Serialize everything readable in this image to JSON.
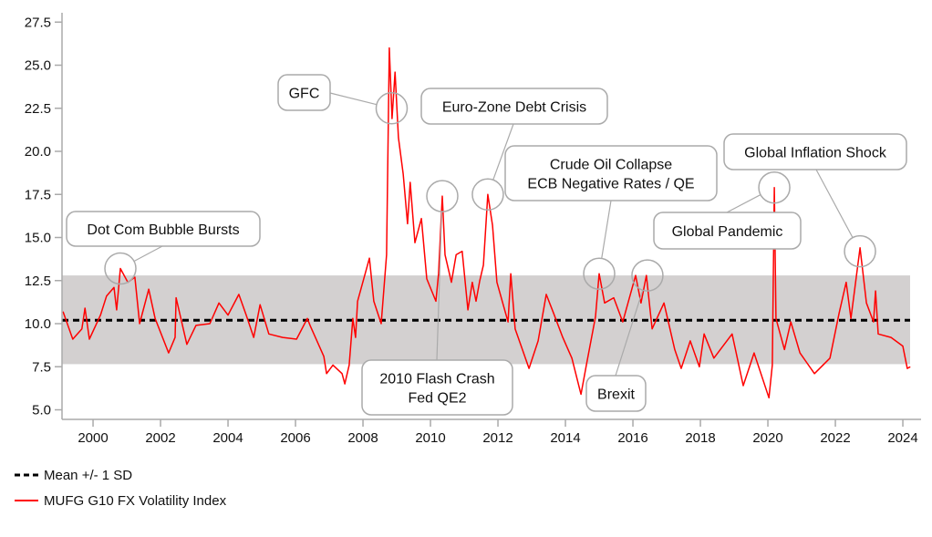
{
  "chart_data": {
    "type": "line",
    "title": "",
    "xlabel": "",
    "ylabel": "",
    "xlim": [
      1999.08,
      2024.6
    ],
    "ylim": [
      5.0,
      27.5
    ],
    "x_ticks": [
      "2000",
      "2002",
      "2004",
      "2006",
      "2008",
      "2010",
      "2012",
      "2014",
      "2016",
      "2018",
      "2020",
      "2022",
      "2024"
    ],
    "y_ticks": [
      "5.0",
      "7.5",
      "10.0",
      "12.5",
      "15.0",
      "17.5",
      "20.0",
      "22.5",
      "25.0",
      "27.5"
    ],
    "mean": 10.2,
    "band": [
      7.65,
      12.8
    ],
    "colors": {
      "series": "#ff0000",
      "band": "#d3d0d0",
      "mean": "#000000",
      "axis": "#aaaaaa",
      "callout": "#aaaaaa"
    },
    "legend": {
      "placement": "bottom-left",
      "entries": [
        "Mean +/- 1 SD",
        "MUFG G10 FX Volatility Index"
      ]
    },
    "series": [
      {
        "name": "MUFG G10 FX Volatility Index",
        "x": [
          1999.11,
          1999.4,
          1999.67,
          1999.76,
          1999.89,
          2000.22,
          2000.4,
          2000.62,
          2000.7,
          2000.81,
          2001.03,
          2001.24,
          2001.38,
          2001.65,
          2001.84,
          2002.24,
          2002.43,
          2002.46,
          2002.78,
          2003.05,
          2003.46,
          2003.73,
          2004.0,
          2004.32,
          2004.54,
          2004.76,
          2004.95,
          2005.21,
          2005.62,
          2006.03,
          2006.35,
          2006.43,
          2006.84,
          2006.92,
          2007.11,
          2007.38,
          2007.46,
          2007.59,
          2007.7,
          2007.78,
          2007.84,
          2008.19,
          2008.32,
          2008.54,
          2008.7,
          2008.78,
          2008.86,
          2008.95,
          2009.05,
          2009.19,
          2009.32,
          2009.4,
          2009.54,
          2009.73,
          2009.89,
          2010.16,
          2010.24,
          2010.35,
          2010.43,
          2010.62,
          2010.76,
          2010.94,
          2011.11,
          2011.24,
          2011.35,
          2011.46,
          2011.57,
          2011.7,
          2011.84,
          2011.97,
          2012.3,
          2012.38,
          2012.51,
          2012.92,
          2013.19,
          2013.43,
          2013.65,
          2013.92,
          2014.19,
          2014.46,
          2014.62,
          2014.89,
          2015.0,
          2015.16,
          2015.43,
          2015.7,
          2016.08,
          2016.24,
          2016.4,
          2016.57,
          2016.92,
          2017.24,
          2017.43,
          2017.7,
          2017.97,
          2018.11,
          2018.4,
          2018.94,
          2019.27,
          2019.59,
          2020.03,
          2020.13,
          2020.19,
          2020.24,
          2020.49,
          2020.68,
          2020.95,
          2021.38,
          2021.84,
          2022.11,
          2022.32,
          2022.46,
          2022.73,
          2022.92,
          2023.13,
          2023.19,
          2023.27,
          2023.65,
          2024.0,
          2024.13,
          2024.22
        ],
        "values": [
          10.7,
          9.1,
          9.7,
          10.9,
          9.1,
          10.5,
          11.6,
          12.1,
          10.8,
          13.2,
          12.4,
          12.7,
          10.0,
          12.0,
          10.3,
          8.3,
          9.2,
          11.5,
          8.8,
          9.9,
          10.0,
          11.2,
          10.5,
          11.7,
          10.5,
          9.2,
          11.1,
          9.4,
          9.2,
          9.1,
          10.3,
          9.9,
          8.1,
          7.1,
          7.6,
          7.1,
          6.5,
          7.6,
          10.3,
          9.2,
          11.3,
          13.8,
          11.3,
          10.0,
          14.0,
          26.0,
          21.9,
          24.6,
          20.8,
          18.7,
          15.8,
          18.2,
          14.7,
          16.1,
          12.6,
          11.3,
          12.9,
          17.4,
          14.0,
          12.4,
          14.0,
          14.2,
          10.8,
          12.4,
          11.3,
          12.5,
          13.4,
          17.5,
          15.7,
          12.4,
          10.1,
          12.9,
          9.7,
          7.4,
          9.0,
          11.7,
          10.6,
          9.2,
          8.0,
          5.9,
          7.6,
          10.4,
          12.9,
          11.2,
          11.5,
          10.1,
          12.8,
          11.2,
          12.8,
          9.7,
          11.2,
          8.5,
          7.4,
          9.0,
          7.5,
          9.4,
          8.0,
          9.4,
          6.4,
          8.3,
          5.7,
          7.6,
          17.9,
          10.3,
          8.5,
          10.1,
          8.3,
          7.1,
          8.0,
          10.6,
          12.4,
          10.3,
          14.4,
          11.2,
          10.1,
          11.9,
          9.4,
          9.2,
          8.7,
          7.4,
          7.5
        ]
      }
    ],
    "annotations": [
      {
        "text": [
          "Dot Com Bubble Bursts"
        ],
        "x": 2000.81,
        "y": 13.2
      },
      {
        "text": [
          "GFC"
        ],
        "x": 2008.85,
        "y": 22.5
      },
      {
        "text": [
          "Euro-Zone Debt Crisis"
        ],
        "x": 2011.7,
        "y": 17.5
      },
      {
        "text": [
          "2010 Flash Crash",
          "Fed QE2"
        ],
        "x": 2010.35,
        "y": 17.4
      },
      {
        "text": [
          "Crude Oil Collapse",
          "ECB Negative Rates / QE"
        ],
        "x": 2015.0,
        "y": 12.9
      },
      {
        "text": [
          "Brexit"
        ],
        "x": 2016.43,
        "y": 12.8
      },
      {
        "text": [
          "Global Pandemic"
        ],
        "x": 2020.19,
        "y": 17.9
      },
      {
        "text": [
          "Global Inflation Shock"
        ],
        "x": 2022.73,
        "y": 14.2
      }
    ]
  }
}
